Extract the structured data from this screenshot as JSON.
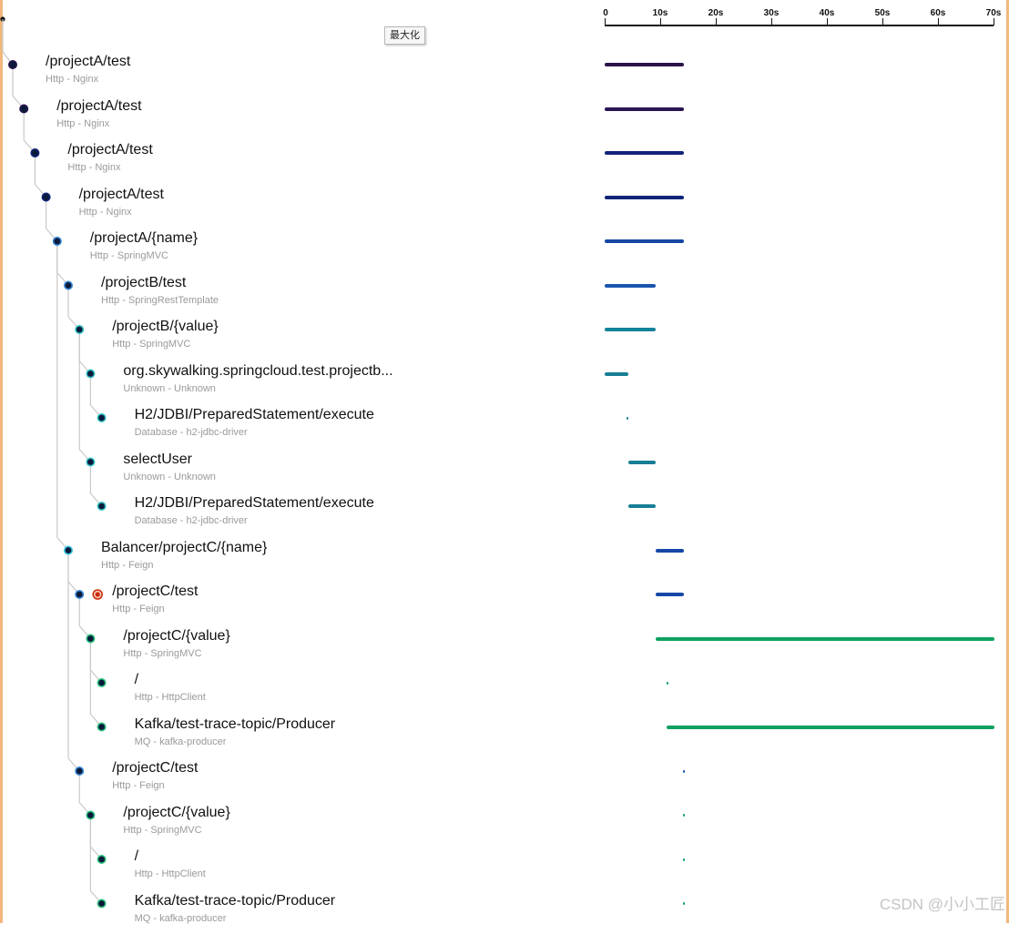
{
  "tooltip": "最大化",
  "axis": {
    "max": 70,
    "ticks": [
      {
        "value": 0,
        "label": "0"
      },
      {
        "value": 10,
        "label": "10s"
      },
      {
        "value": 20,
        "label": "20s"
      },
      {
        "value": 30,
        "label": "30s"
      },
      {
        "value": 40,
        "label": "40s"
      },
      {
        "value": 50,
        "label": "50s"
      },
      {
        "value": 60,
        "label": "60s"
      },
      {
        "value": 70,
        "label": "70s"
      }
    ]
  },
  "colors": {
    "tree_line": "#c8c8c8",
    "node_fill": "#0a1a3a",
    "error_marker": "#cc2a0a",
    "frame": "#f2b77c"
  },
  "spans": [
    {
      "title": "/projectA/test",
      "subtitle": "Http - Nginx",
      "depth": 1,
      "start": 0,
      "end": 14.3,
      "color": "#2a124a",
      "ring": "#2a124a"
    },
    {
      "title": "/projectA/test",
      "subtitle": "Http - Nginx",
      "depth": 2,
      "start": 0,
      "end": 14.3,
      "color": "#2a1550",
      "ring": "#2a1550"
    },
    {
      "title": "/projectA/test",
      "subtitle": "Http - Nginx",
      "depth": 3,
      "start": 0,
      "end": 14.3,
      "color": "#13237a",
      "ring": "#13237a"
    },
    {
      "title": "/projectA/test",
      "subtitle": "Http - Nginx",
      "depth": 4,
      "start": 0,
      "end": 14.3,
      "color": "#10257a",
      "ring": "#10257a"
    },
    {
      "title": "/projectA/{name}",
      "subtitle": "Http - SpringMVC",
      "depth": 5,
      "start": 0,
      "end": 14.3,
      "color": "#1647a6",
      "ring": "#2f7fd0"
    },
    {
      "title": "/projectB/test",
      "subtitle": "Http - SpringRestTemplate",
      "depth": 6,
      "start": 0,
      "end": 9.2,
      "color": "#1a55ad",
      "ring": "#3a89d8"
    },
    {
      "title": "/projectB/{value}",
      "subtitle": "Http - SpringMVC",
      "depth": 7,
      "start": 0,
      "end": 9.2,
      "color": "#15849a",
      "ring": "#33c3c3"
    },
    {
      "title": "org.skywalking.springcloud.test.projectb...",
      "subtitle": "Unknown - Unknown",
      "depth": 8,
      "start": 0,
      "end": 4.2,
      "color": "#177e95",
      "ring": "#33c3c3"
    },
    {
      "title": "H2/JDBI/PreparedStatement/execute",
      "subtitle": "Database - h2-jdbc-driver",
      "depth": 9,
      "start": 4.0,
      "end": 4.3,
      "color": "#177e95",
      "ring": "#33c3c3"
    },
    {
      "title": "selectUser",
      "subtitle": "Unknown - Unknown",
      "depth": 8,
      "start": 4.2,
      "end": 9.2,
      "color": "#177e95",
      "ring": "#33c3c3"
    },
    {
      "title": "H2/JDBI/PreparedStatement/execute",
      "subtitle": "Database - h2-jdbc-driver",
      "depth": 9,
      "start": 4.2,
      "end": 9.2,
      "color": "#177e95",
      "ring": "#33c3c3"
    },
    {
      "title": "Balancer/projectC/{name}",
      "subtitle": "Http - Feign",
      "depth": 6,
      "start": 9.2,
      "end": 14.2,
      "color": "#1647a6",
      "ring": "#33c3e0"
    },
    {
      "title": "/projectC/test",
      "subtitle": "Http - Feign",
      "depth": 7,
      "start": 9.2,
      "end": 14.2,
      "color": "#1647a6",
      "ring": "#3a89d8",
      "error": true
    },
    {
      "title": "/projectC/{value}",
      "subtitle": "Http - SpringMVC",
      "depth": 8,
      "start": 9.2,
      "end": 70.2,
      "color": "#10a060",
      "ring": "#2ec27e"
    },
    {
      "title": "/",
      "subtitle": "Http - HttpClient",
      "depth": 9,
      "start": 11.2,
      "end": 11.5,
      "color": "#10a060",
      "ring": "#2ec27e"
    },
    {
      "title": "Kafka/test-trace-topic/Producer",
      "subtitle": "MQ - kafka-producer",
      "depth": 9,
      "start": 11.2,
      "end": 70.2,
      "color": "#10a060",
      "ring": "#2ec27e"
    },
    {
      "title": "/projectC/test",
      "subtitle": "Http - Feign",
      "depth": 7,
      "start": 14.1,
      "end": 14.4,
      "color": "#1a55ad",
      "ring": "#3a89d8"
    },
    {
      "title": "/projectC/{value}",
      "subtitle": "Http - SpringMVC",
      "depth": 8,
      "start": 14.1,
      "end": 14.4,
      "color": "#10a060",
      "ring": "#2ec27e"
    },
    {
      "title": "/",
      "subtitle": "Http - HttpClient",
      "depth": 9,
      "start": 14.1,
      "end": 14.4,
      "color": "#10a060",
      "ring": "#2ec27e"
    },
    {
      "title": "Kafka/test-trace-topic/Producer",
      "subtitle": "MQ - kafka-producer",
      "depth": 9,
      "start": 14.1,
      "end": 14.4,
      "color": "#10a060",
      "ring": "#2ec27e"
    }
  ],
  "watermark": "CSDN @小小工匠"
}
